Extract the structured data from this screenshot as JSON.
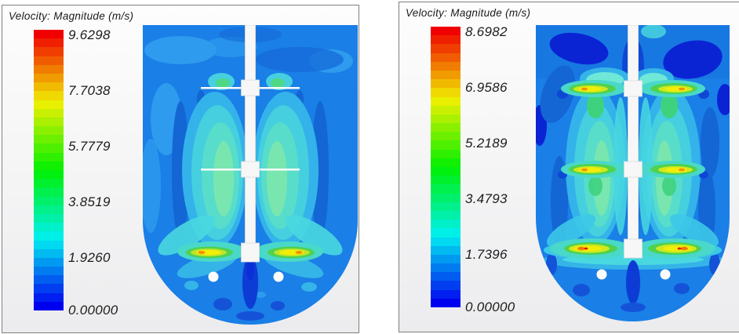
{
  "panels": [
    {
      "title": "Velocity: Magnitude (m/s)",
      "colorbar": {
        "labels": [
          "9.6298",
          "7.7038",
          "5.7779",
          "3.8519",
          "1.9260",
          "0.00000"
        ],
        "min": 0.0,
        "max": 9.6298,
        "units": "m/s"
      }
    },
    {
      "title": "Velocity: Magnitude (m/s)",
      "colorbar": {
        "labels": [
          "8.6982",
          "6.9586",
          "5.2189",
          "3.4793",
          "1.7396",
          "0.00000"
        ],
        "min": 0.0,
        "max": 8.6982,
        "units": "m/s"
      }
    }
  ],
  "colorbar_colors": [
    "#f00000",
    "#f01f00",
    "#f03e00",
    "#f05d00",
    "#f07c00",
    "#f09b00",
    "#f0ba00",
    "#f0d900",
    "#e8f000",
    "#c9f000",
    "#aaf000",
    "#8bf000",
    "#6cf000",
    "#4ef000",
    "#2ef000",
    "#10f000",
    "#00f010",
    "#00f02e",
    "#00f04e",
    "#00f06c",
    "#00f08b",
    "#00f0aa",
    "#00f0c9",
    "#00f0e8",
    "#00d9f0",
    "#00baf0",
    "#009bf0",
    "#007cf0",
    "#005df0",
    "#003ef0",
    "#001ff0",
    "#0000f0"
  ],
  "palette": {
    "field_base_blue": "#1a7fe6",
    "field_light_blue": "#2e9bee",
    "field_cyan": "#45cfdf",
    "field_pale_green": "#79e6b0",
    "field_green": "#4fd24f",
    "field_yellow": "#f2ef05",
    "field_orange": "#f29000",
    "field_red": "#e81800",
    "field_navy": "#0a24d4",
    "geometry_white": "#f7f7f7",
    "panel_border": "#7f7f7f",
    "text": "#1a1a1a"
  },
  "chart_data": [
    {
      "type": "heatmap",
      "subtype": "cfd-velocity-contour",
      "title": "Velocity: Magnitude (m/s)",
      "units": "m/s",
      "range": [
        0.0,
        9.6298
      ],
      "colorbar_ticks": [
        9.6298,
        7.7038,
        5.7779,
        3.8519,
        1.926,
        0.0
      ],
      "legend_position": "left",
      "annotations": "Stirred tank with hemispherical bottom, central shaft and three impellers; high-velocity (yellow/orange ~5-8 m/s) jets at bottom impeller blade tips, cyan upflow plumes (~1.5-3 m/s) flanking shaft, background blue ~0.5-1.5 m/s, two sparger holes below bottom impeller"
    },
    {
      "type": "heatmap",
      "subtype": "cfd-velocity-contour",
      "title": "Velocity: Magnitude (m/s)",
      "units": "m/s",
      "range": [
        0.0,
        8.6982
      ],
      "colorbar_ticks": [
        8.6982,
        6.9586,
        5.2189,
        3.4793,
        1.7396,
        0.0
      ],
      "legend_position": "left",
      "annotations": "Same stirred tank; high-velocity yellow/green jets (~4-7 m/s) at all three impellers with red spots (~8 m/s) at bottom blade tips, dark navy low-velocity zones (~0-0.5 m/s) near top corners, cyan circulation plumes along shaft"
    }
  ]
}
